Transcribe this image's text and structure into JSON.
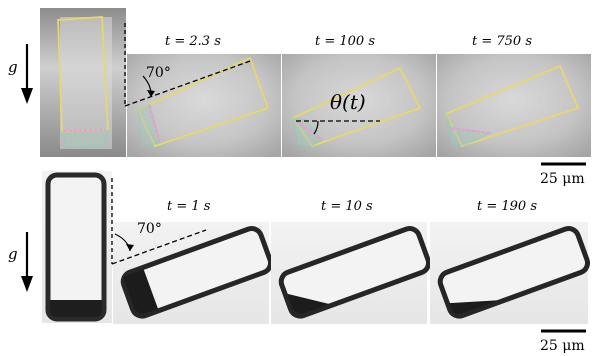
{
  "top_row": {
    "gravity_label": "g",
    "tilt_angle": "70°",
    "theta_label": "θ(t)",
    "time_labels": [
      "t = 2.3 s",
      "t = 100 s",
      "t = 750 s"
    ],
    "scale_bar_label": "25 μm"
  },
  "bottom_row": {
    "gravity_label": "g",
    "tilt_angle": "70°",
    "time_labels": [
      "t = 1 s",
      "t = 10 s",
      "t = 190 s"
    ],
    "scale_bar_label": "25 μm"
  }
}
